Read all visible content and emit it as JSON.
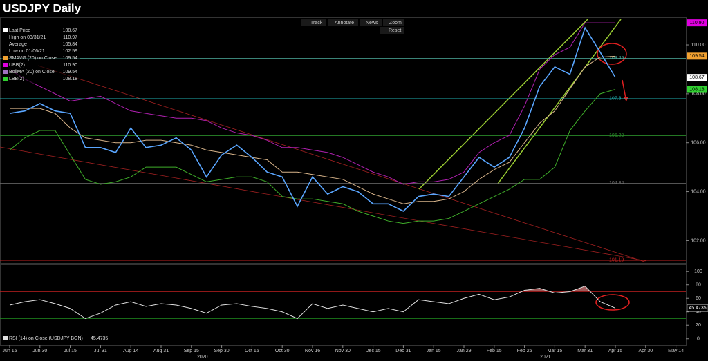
{
  "header": {
    "title": "USDJPY Daily"
  },
  "toolbar": [
    "Track",
    "Annotate",
    "News",
    "Zoom",
    "Reset"
  ],
  "chart_data": [
    {
      "type": "line",
      "categories": [
        "Jun 15",
        null,
        "Jun 30",
        null,
        "Jul 15",
        null,
        "Jul 31",
        null,
        "Aug 14",
        null,
        "Aug 31",
        null,
        "Sep 15",
        null,
        "Sep 30",
        null,
        "Oct 15",
        null,
        "Oct 30",
        null,
        "Nov 16",
        null,
        "Nov 30",
        null,
        "Dec 15",
        null,
        "Dec 31",
        null,
        "Jan 15",
        null,
        "Jan 29",
        null,
        "Feb 15",
        null,
        "Feb 26",
        null,
        "Mar 15",
        null,
        "Mar 31",
        null,
        "Apr 15",
        null,
        "Apr 30",
        null,
        "May 14"
      ],
      "year_labels": [
        "2020",
        "2021"
      ],
      "series": [
        {
          "color": "#9c9c9c",
          "values": [
            109.0,
            108.6,
            108.3,
            108.0,
            107.7,
            107.8,
            107.9,
            107.6,
            107.3,
            107.2,
            107.1,
            107.0,
            107.0,
            106.9,
            106.6,
            106.4,
            106.3,
            106.1,
            105.8,
            105.8,
            105.7,
            105.6,
            105.4,
            105.1,
            104.8,
            104.6,
            104.3,
            104.4,
            104.4,
            104.5,
            104.8,
            105.6,
            106.0,
            106.3,
            107.5,
            109.0,
            109.6,
            109.9,
            110.9,
            110.9,
            110.9,
            null,
            null,
            null,
            null
          ],
          "line_color": "#b020b0"
        },
        {
          "color": "#3fae2a",
          "values": [
            105.7,
            106.2,
            106.5,
            106.5,
            105.5,
            104.5,
            104.3,
            104.4,
            104.6,
            105.0,
            105.0,
            105.0,
            104.7,
            104.4,
            104.5,
            104.6,
            104.6,
            104.4,
            103.8,
            103.7,
            103.7,
            103.6,
            103.5,
            103.2,
            103.0,
            102.8,
            102.7,
            102.8,
            102.8,
            102.9,
            103.2,
            103.5,
            103.8,
            104.1,
            104.5,
            104.5,
            105.0,
            106.5,
            107.3,
            108.0,
            108.18,
            null,
            null,
            null,
            null
          ],
          "line_color": "#3fae2a"
        },
        {
          "color": "#d8b48a",
          "values": [
            107.4,
            107.4,
            107.4,
            107.2,
            106.6,
            106.2,
            106.1,
            106.0,
            106.0,
            106.1,
            106.1,
            106.0,
            105.9,
            105.7,
            105.6,
            105.5,
            105.4,
            105.3,
            104.8,
            104.8,
            104.7,
            104.6,
            104.5,
            104.2,
            103.9,
            103.7,
            103.5,
            103.6,
            103.6,
            103.7,
            104.0,
            104.5,
            104.9,
            105.2,
            106.0,
            106.8,
            107.3,
            108.2,
            109.1,
            109.5,
            109.54,
            null,
            null,
            null,
            null
          ],
          "line_color": "#d8b48a"
        },
        {
          "color": "#3a8ee6",
          "values": [
            107.2,
            107.3,
            107.6,
            107.3,
            107.2,
            105.8,
            105.8,
            105.6,
            106.6,
            105.8,
            105.9,
            106.2,
            105.7,
            104.6,
            105.5,
            105.9,
            105.4,
            104.8,
            104.6,
            103.4,
            104.6,
            103.9,
            104.2,
            104.0,
            103.5,
            103.5,
            103.2,
            103.8,
            103.9,
            103.8,
            104.6,
            105.4,
            105.0,
            105.4,
            106.6,
            108.3,
            109.1,
            108.8,
            110.7,
            109.7,
            108.67,
            null,
            null,
            null,
            null
          ],
          "line_color": "#5aa6ff"
        }
      ],
      "levels": [
        {
          "value": 109.45,
          "color": "#4fb0a0"
        },
        {
          "value": 107.8,
          "color": "#20b0b0"
        },
        {
          "value": 106.29,
          "color": "#2a8a2a"
        },
        {
          "value": 104.34,
          "color": "#707070"
        },
        {
          "value": 101.19,
          "color": "#c02020"
        }
      ],
      "legend": [
        {
          "name": "Last Price",
          "value": 108.67,
          "color": "#ffffff",
          "tag": true
        },
        {
          "name": "High on 03/31/21",
          "value": 110.97
        },
        {
          "name": "Average",
          "value": 105.84
        },
        {
          "name": "Low on 01/06/21",
          "value": 102.59
        },
        {
          "name": "SMAVG (20)  on Close",
          "value": 109.54,
          "color": "#f0a030",
          "tag": true
        },
        {
          "name": "UBB(2)",
          "value": 110.9,
          "value_label": "110.90",
          "color": "#e000e0",
          "tag": true
        },
        {
          "name": "BollMA (20)  on Close",
          "value": 109.54,
          "color": "#a070c0"
        },
        {
          "name": "LBB(2)",
          "value": 108.18,
          "color": "#30d030",
          "tag": true
        }
      ],
      "ylim": [
        101.08,
        111.13
      ],
      "yticks": [
        {
          "value": 102,
          "label": "102.00"
        },
        {
          "value": 104,
          "label": "104.00"
        },
        {
          "value": 106,
          "label": "106.00"
        },
        {
          "value": 108,
          "label": "108.00"
        },
        {
          "value": 110,
          "label": "110.00"
        }
      ]
    },
    {
      "type": "line",
      "legend": {
        "name": "RSI (14)  on Close (USDJPY BGN)",
        "value": 45.4735
      },
      "series": [
        {
          "color": "#e0e0e0",
          "values": [
            50,
            55,
            58,
            52,
            45,
            30,
            38,
            50,
            55,
            48,
            52,
            50,
            45,
            38,
            50,
            52,
            48,
            45,
            40,
            30,
            52,
            45,
            50,
            45,
            40,
            45,
            40,
            58,
            55,
            52,
            60,
            66,
            58,
            62,
            72,
            75,
            68,
            70,
            78,
            55,
            45.4735,
            null,
            null,
            null,
            null
          ]
        }
      ],
      "levels": [
        {
          "value": 70,
          "color": "#c02020"
        },
        {
          "value": 30,
          "color": "#209020"
        }
      ],
      "ylim": [
        -9.5,
        110.5
      ],
      "yticks": [
        0,
        20,
        40,
        60,
        80,
        100
      ]
    }
  ]
}
